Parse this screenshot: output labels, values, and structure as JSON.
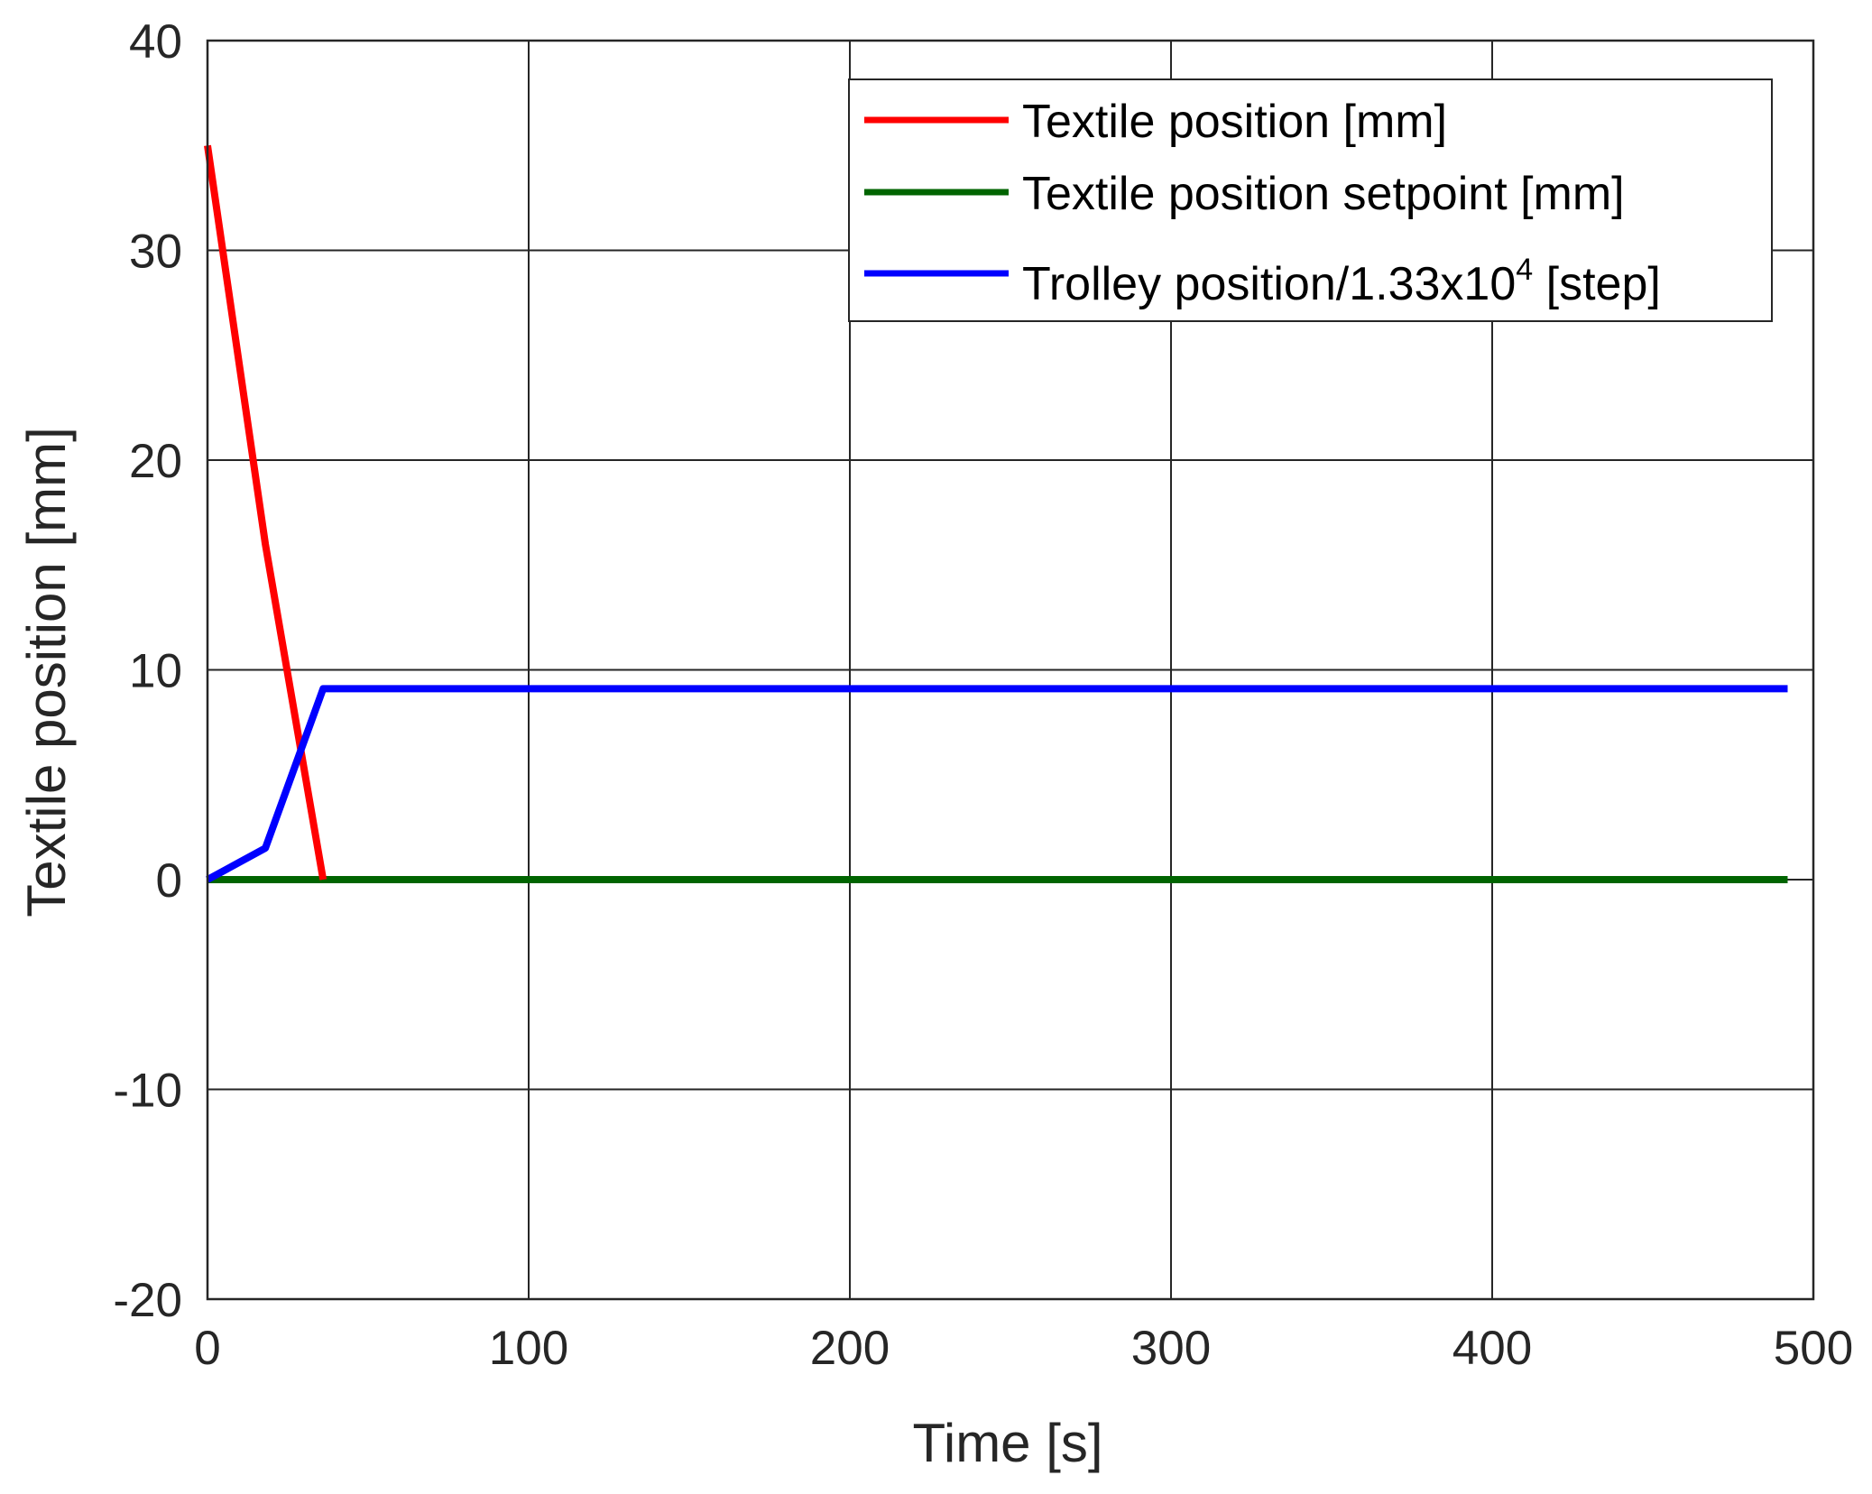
{
  "chart_data": {
    "type": "line",
    "title": "",
    "xlabel": "Time [s]",
    "ylabel": "Textile position [mm]",
    "xlim": [
      0,
      500
    ],
    "ylim": [
      -20,
      40
    ],
    "xticks": [
      0,
      100,
      200,
      300,
      400,
      500
    ],
    "yticks": [
      -20,
      -10,
      0,
      10,
      20,
      30,
      40
    ],
    "xtick_labels": [
      "0",
      "100",
      "200",
      "300",
      "400",
      "500"
    ],
    "ytick_labels": [
      "-20",
      "-10",
      "0",
      "10",
      "20",
      "30",
      "40"
    ],
    "grid": true,
    "legend_position": "top-right",
    "series": [
      {
        "name": "Textile position [mm]",
        "color": "#ff0000",
        "x": [
          0,
          18,
          36
        ],
        "y": [
          35,
          16,
          0
        ]
      },
      {
        "name": "Textile position setpoint [mm]",
        "color": "#006400",
        "x": [
          0,
          492
        ],
        "y": [
          0,
          0
        ]
      },
      {
        "name_main": "Trolley position/1.33x10",
        "name_sup": "4",
        "name_tail": " [step]",
        "color": "#0000ff",
        "x": [
          0,
          18,
          36,
          492
        ],
        "y": [
          0,
          1.5,
          9.1,
          9.1
        ]
      }
    ]
  }
}
